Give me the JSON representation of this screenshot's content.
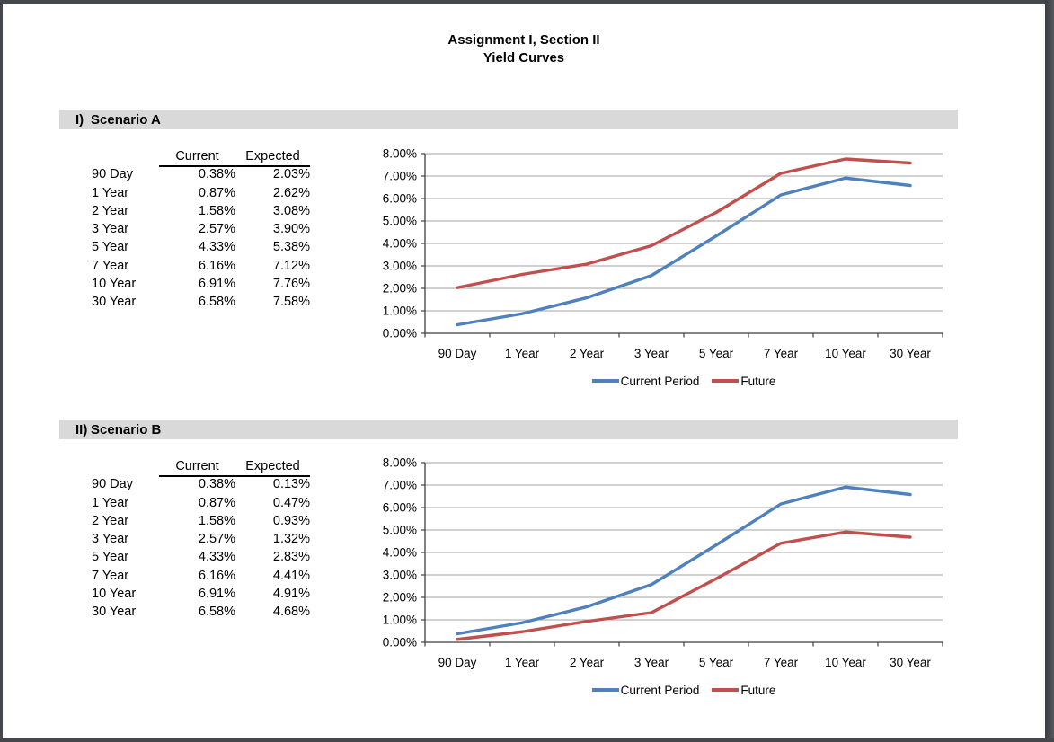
{
  "page": {
    "title_line1": "Assignment I, Section II",
    "title_line2": "Yield Curves"
  },
  "colors": {
    "current_series": "#4F81BD",
    "future_series": "#C0504D",
    "section_header_bg": "#D9D9D9",
    "gridline": "#A3A3A3",
    "axis": "#3F3F3F",
    "page_frame": "#44474B"
  },
  "sections": [
    {
      "numeral": "I)",
      "title": "Scenario A",
      "table": {
        "col_headers": [
          "Current",
          "Expected"
        ],
        "rows": [
          {
            "label": "90 Day",
            "current": "0.38%",
            "expected": "2.03%"
          },
          {
            "label": "1 Year",
            "current": "0.87%",
            "expected": "2.62%"
          },
          {
            "label": "2 Year",
            "current": "1.58%",
            "expected": "3.08%"
          },
          {
            "label": "3 Year",
            "current": "2.57%",
            "expected": "3.90%"
          },
          {
            "label": "5 Year",
            "current": "4.33%",
            "expected": "5.38%"
          },
          {
            "label": "7 Year",
            "current": "6.16%",
            "expected": "7.12%"
          },
          {
            "label": "10 Year",
            "current": "6.91%",
            "expected": "7.76%"
          },
          {
            "label": "30 Year",
            "current": "6.58%",
            "expected": "7.58%"
          }
        ]
      }
    },
    {
      "numeral": "II)",
      "title": "Scenario B",
      "table": {
        "col_headers": [
          "Current",
          "Expected"
        ],
        "rows": [
          {
            "label": "90 Day",
            "current": "0.38%",
            "expected": "0.13%"
          },
          {
            "label": "1 Year",
            "current": "0.87%",
            "expected": "0.47%"
          },
          {
            "label": "2 Year",
            "current": "1.58%",
            "expected": "0.93%"
          },
          {
            "label": "3 Year",
            "current": "2.57%",
            "expected": "1.32%"
          },
          {
            "label": "5 Year",
            "current": "4.33%",
            "expected": "2.83%"
          },
          {
            "label": "7 Year",
            "current": "6.16%",
            "expected": "4.41%"
          },
          {
            "label": "10 Year",
            "current": "6.91%",
            "expected": "4.91%"
          },
          {
            "label": "30 Year",
            "current": "6.58%",
            "expected": "4.68%"
          }
        ]
      }
    }
  ],
  "chart_data": [
    {
      "type": "line",
      "title": "Scenario A yield curves",
      "categories": [
        "90 Day",
        "1 Year",
        "2 Year",
        "3 Year",
        "5 Year",
        "7 Year",
        "10 Year",
        "30 Year"
      ],
      "series": [
        {
          "name": "Current Period",
          "color": "#4F81BD",
          "values": [
            0.38,
            0.87,
            1.58,
            2.57,
            4.33,
            6.16,
            6.91,
            6.58
          ]
        },
        {
          "name": "Future",
          "color": "#C0504D",
          "values": [
            2.03,
            2.62,
            3.08,
            3.9,
            5.38,
            7.12,
            7.76,
            7.58
          ]
        }
      ],
      "xlabel": "",
      "ylabel": "",
      "ylim": [
        0,
        8
      ],
      "ytick_step": 1,
      "ytick_format": "percent2",
      "grid": true,
      "legend_position": "bottom"
    },
    {
      "type": "line",
      "title": "Scenario B yield curves",
      "categories": [
        "90 Day",
        "1 Year",
        "2 Year",
        "3 Year",
        "5 Year",
        "7 Year",
        "10 Year",
        "30 Year"
      ],
      "series": [
        {
          "name": "Current Period",
          "color": "#4F81BD",
          "values": [
            0.38,
            0.87,
            1.58,
            2.57,
            4.33,
            6.16,
            6.91,
            6.58
          ]
        },
        {
          "name": "Future",
          "color": "#C0504D",
          "values": [
            0.13,
            0.47,
            0.93,
            1.32,
            2.83,
            4.41,
            4.91,
            4.68
          ]
        }
      ],
      "xlabel": "",
      "ylabel": "",
      "ylim": [
        0,
        8
      ],
      "ytick_step": 1,
      "ytick_format": "percent2",
      "grid": true,
      "legend_position": "bottom"
    }
  ]
}
